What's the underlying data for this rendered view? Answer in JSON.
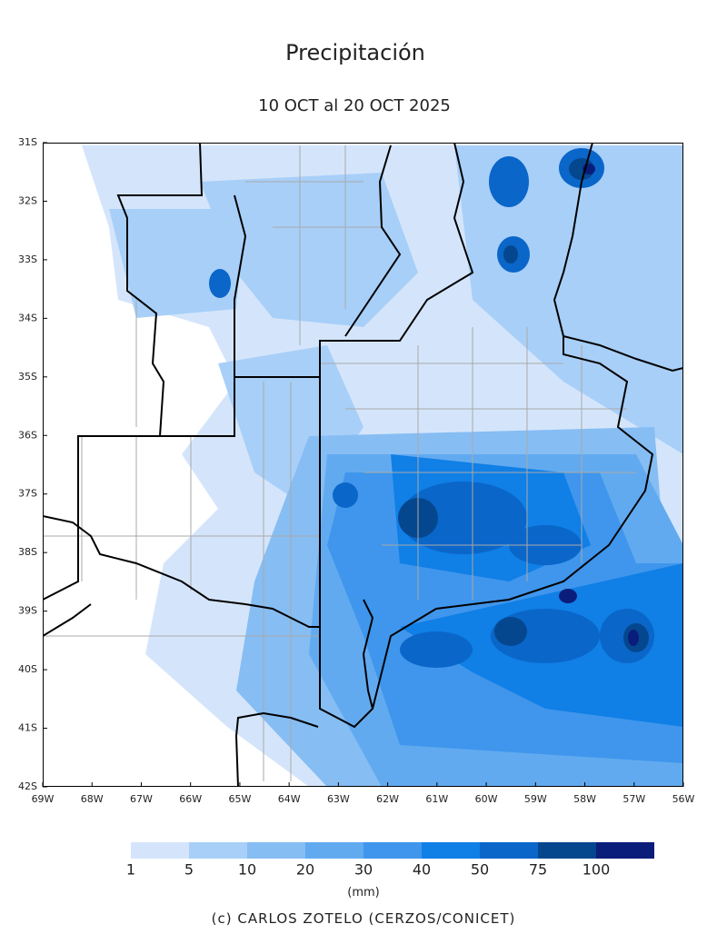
{
  "title": "Precipitación",
  "subtitle": "10 OCT al 20 OCT 2025",
  "map": {
    "lat_labels": [
      "31S",
      "32S",
      "33S",
      "34S",
      "35S",
      "36S",
      "37S",
      "38S",
      "39S",
      "40S",
      "41S",
      "42S"
    ],
    "lon_labels": [
      "69W",
      "68W",
      "67W",
      "66W",
      "65W",
      "64W",
      "63W",
      "62W",
      "61W",
      "60W",
      "59W",
      "58W",
      "57W",
      "56W"
    ]
  },
  "colorbar": {
    "levels": [
      1,
      5,
      10,
      20,
      30,
      40,
      50,
      75,
      100
    ],
    "colors": [
      "#d4e5fb",
      "#a8cff8",
      "#86bdf3",
      "#62aaf0",
      "#3f96ec",
      "#107fe6",
      "#0a66c9",
      "#05478e",
      "#0b1d7a"
    ],
    "unit": "(mm)"
  },
  "credit": "(c) CARLOS ZOTELO (CERZOS/CONICET)"
}
